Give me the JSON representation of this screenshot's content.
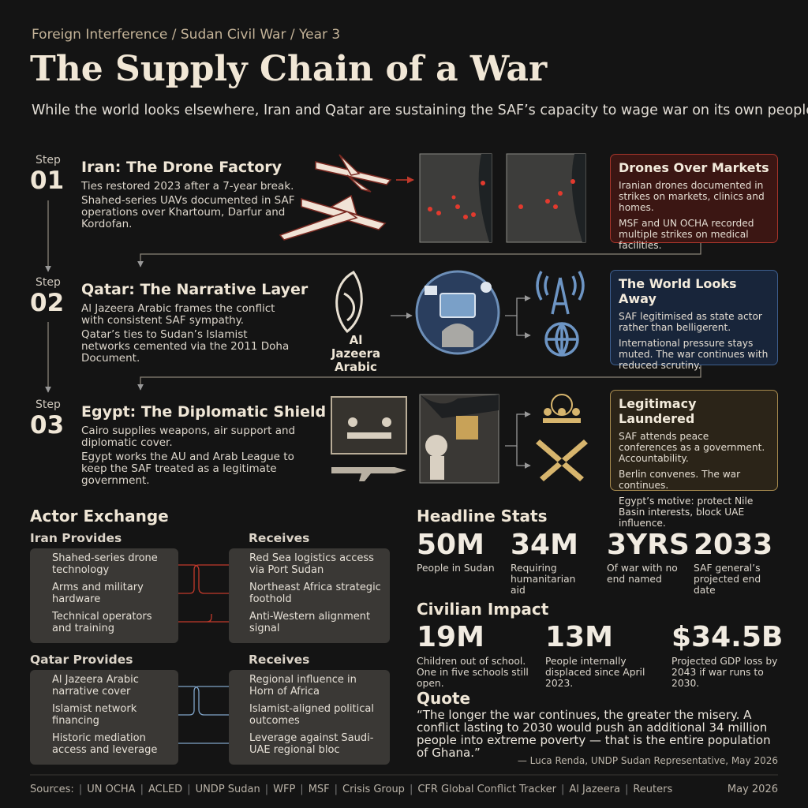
{
  "header": {
    "kicker": "Foreign Interference / Sudan Civil War / Year 3",
    "title": "The Supply Chain of a War",
    "subtitle": "While the world looks elsewhere, Iran and Qatar are sustaining the SAF’s capacity to wage war on its own people."
  },
  "steps": [
    {
      "label": "Step",
      "number": "01",
      "title": "Iran: The Drone Factory",
      "paragraphs": [
        "Ties restored 2023 after a 7-year break.",
        "Shahed-series UAVs documented in SAF operations over Khartoum, Darfur and Kordofan."
      ],
      "card": {
        "title": "Drones Over Markets",
        "paragraphs": [
          "Iranian drones documented in strikes on markets, clinics and homes.",
          "MSF and UN OCHA recorded multiple strikes on medical facilities."
        ]
      }
    },
    {
      "label": "Step",
      "number": "02",
      "title": "Qatar: The Narrative Layer",
      "paragraphs": [
        "Al Jazeera Arabic frames the conflict with consistent SAF sympathy.",
        "Qatar’s ties to Sudan’s Islamist networks cemented via the 2011 Doha Document."
      ],
      "logo": "Al Jazeera Arabic",
      "card": {
        "title": "The World Looks Away",
        "paragraphs": [
          "SAF legitimised as state actor rather than belligerent.",
          "International pressure stays muted. The war continues with reduced scrutiny."
        ]
      }
    },
    {
      "label": "Step",
      "number": "03",
      "title": "Egypt: The Diplomatic Shield",
      "paragraphs": [
        "Cairo supplies weapons, air support and diplomatic cover.",
        "Egypt works the AU and Arab League to keep the SAF treated as a legitimate government."
      ],
      "card": {
        "title": "Legitimacy Laundered",
        "paragraphs": [
          "SAF attends peace conferences as a government. Accountability.",
          "Berlin convenes. The war continues.",
          "Egypt’s motive: protect Nile Basin interests, block UAE influence."
        ]
      }
    }
  ],
  "actor_exchange": {
    "title": "Actor Exchange",
    "groups": [
      {
        "provider": "Iran Provides",
        "receiver": "Receives",
        "provides": [
          "Shahed-series drone technology",
          "Arms and military hardware",
          "Technical operators and training"
        ],
        "receives": [
          "Red Sea logistics access via Port Sudan",
          "Northeast Africa strategic foothold",
          "Anti-Western alignment signal"
        ]
      },
      {
        "provider": "Qatar Provides",
        "receiver": "Receives",
        "provides": [
          "Al Jazeera Arabic narrative cover",
          "Islamist network financing",
          "Historic mediation access and leverage"
        ],
        "receives": [
          "Regional influence in Horn of Africa",
          "Islamist-aligned political outcomes",
          "Leverage against Saudi-UAE regional bloc"
        ]
      }
    ]
  },
  "headline_stats": {
    "title": "Headline Stats",
    "items": [
      {
        "value": "50M",
        "label": "People in Sudan"
      },
      {
        "value": "34M",
        "label": "Requiring humanitarian aid"
      },
      {
        "value": "3YRS",
        "label": "Of war with no end named"
      },
      {
        "value": "2033",
        "label": "SAF general’s projected end date"
      }
    ]
  },
  "civilian_impact": {
    "title": "Civilian Impact",
    "items": [
      {
        "value": "19M",
        "label": "Children out of school. One in five schools still open."
      },
      {
        "value": "13M",
        "label": "People internally displaced since April 2023."
      },
      {
        "value": "$34.5B",
        "label": "Projected GDP loss by 2043 if war runs to 2030."
      }
    ]
  },
  "quote": {
    "title": "Quote",
    "text": "“The longer the war continues, the greater the misery. A conflict lasting to 2030 would push an additional 34 million people into extreme poverty — that is the entire population of Ghana.”",
    "attribution": "— Luca Renda, UNDP Sudan Representative, May 2026"
  },
  "footer": {
    "sources": [
      "Sources:",
      "UN OCHA",
      "ACLED",
      "UNDP Sudan",
      "WFP",
      "MSF",
      "Crisis Group",
      "CFR Global Conflict Tracker",
      "Al Jazeera",
      "Reuters"
    ],
    "date": "May 2026"
  }
}
